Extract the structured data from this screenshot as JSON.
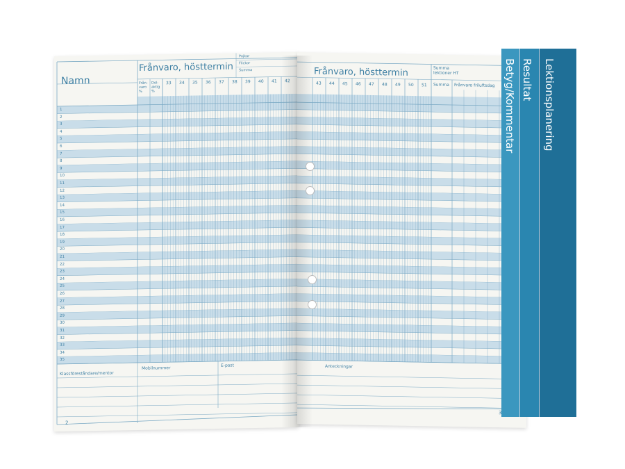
{
  "left_page": {
    "name_header": "Namn",
    "title": "Frånvaro, hösttermin",
    "sub_col1": "Från-varo %",
    "sub_col2": "Del-aktig %",
    "weeks": [
      "33",
      "34",
      "35",
      "36",
      "37",
      "38",
      "39",
      "40",
      "41",
      "42"
    ],
    "counts": [
      "Pojkar",
      "Flickor",
      "Summa"
    ],
    "rows": 35,
    "footer": [
      "Klassföreståndare/mentor",
      "Mobilnummer",
      "E-post"
    ],
    "page_number": "2"
  },
  "right_page": {
    "title": "Frånvaro, hösttermin",
    "summa_lektioner": "Summa lektioner HT",
    "weeks": [
      "43",
      "44",
      "45",
      "46",
      "47",
      "48",
      "49",
      "50",
      "51"
    ],
    "summa": "Summa",
    "franvaro_friluftsdag": "Frånvaro friluftsdag",
    "notes": "Anteckningar",
    "page_number": "3"
  },
  "tabs": [
    "Lektionsplanering",
    "Resultat",
    "Betyg/Kommentar"
  ],
  "colors": {
    "accent": "#2a7ea6",
    "row_stripe": "#c9dde9",
    "line": "#7aa9c4"
  }
}
